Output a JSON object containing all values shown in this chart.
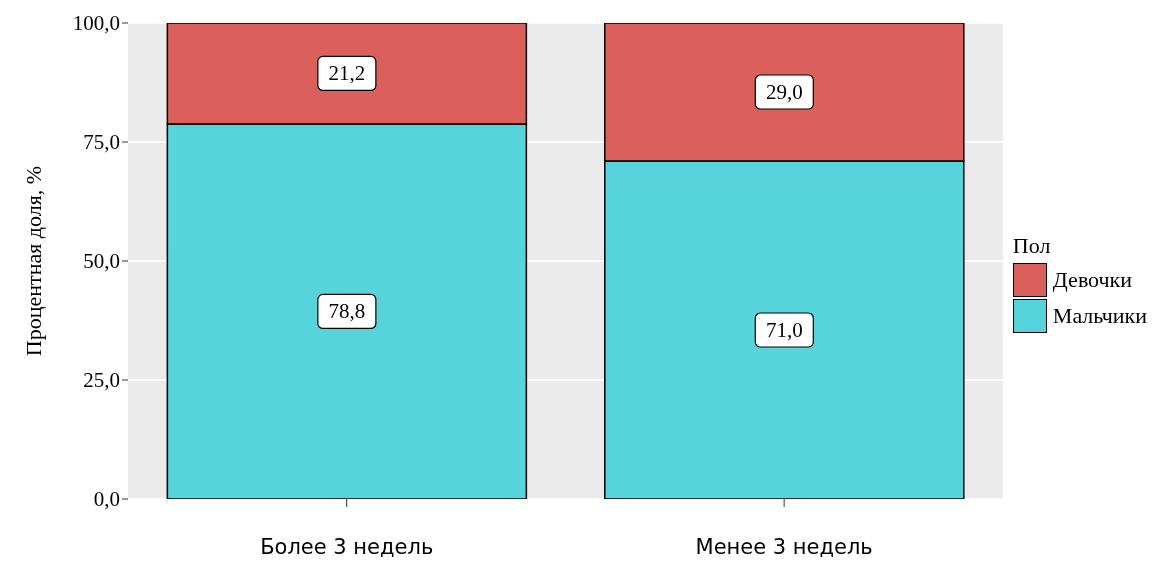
{
  "chart_data": {
    "type": "bar",
    "stacked": true,
    "ylabel": "Процентная доля, %",
    "legend_title": "Пол",
    "legend": "right",
    "grid": "y",
    "categories": [
      "Более 3 недель",
      "Менее 3 недель"
    ],
    "series": [
      {
        "name": "Мальчики",
        "color": "#56d3db",
        "values": [
          78.8,
          71.0
        ],
        "value_labels": [
          "78,8",
          "71,0"
        ]
      },
      {
        "name": "Девочки",
        "color": "#db5f5a",
        "values": [
          21.2,
          29.0
        ],
        "value_labels": [
          "21,2",
          "29,0"
        ]
      }
    ],
    "ylim": [
      0,
      100
    ],
    "yticks": [
      {
        "value": 0,
        "label": "0,0"
      },
      {
        "value": 25,
        "label": "25,0"
      },
      {
        "value": 50,
        "label": "50,0"
      },
      {
        "value": 75,
        "label": "75,0"
      },
      {
        "value": 100,
        "label": "100,0"
      }
    ]
  }
}
